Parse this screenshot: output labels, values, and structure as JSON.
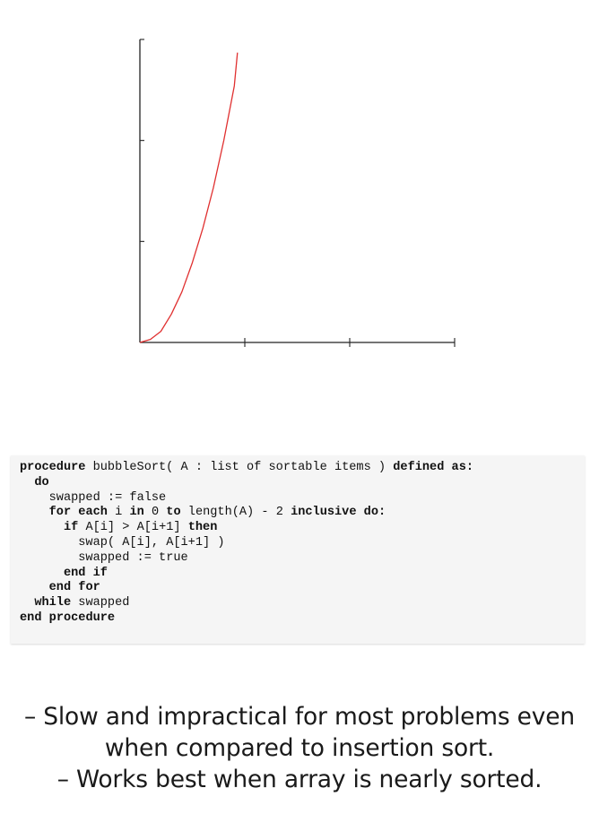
{
  "chart_data": {
    "type": "line",
    "title": "",
    "xlabel": "",
    "ylabel": "",
    "xlim": [
      0,
      3
    ],
    "ylim": [
      0,
      3
    ],
    "grid": false,
    "xticks": 3,
    "yticks": 3,
    "series": [
      {
        "color": "#e03030",
        "function": "quadratic",
        "x": [
          0,
          0.1,
          0.2,
          0.3,
          0.4,
          0.5,
          0.6,
          0.7,
          0.8,
          0.9,
          0.93
        ],
        "y": [
          0,
          0.03,
          0.11,
          0.28,
          0.5,
          0.79,
          1.13,
          1.53,
          2.0,
          2.54,
          2.87
        ]
      }
    ]
  },
  "code": {
    "lines": [
      {
        "text": "procedure bubbleSort( A : list of sortable items ) defined as:"
      },
      {
        "text": "  do"
      },
      {
        "text": "    swapped := false"
      },
      {
        "text": "    for each i in 0 to length(A) - 2 inclusive do:"
      },
      {
        "text": "      if A[i] > A[i+1] then"
      },
      {
        "text": "        swap( A[i], A[i+1] )"
      },
      {
        "text": "        swapped := true"
      },
      {
        "text": "      end if"
      },
      {
        "text": "    end for"
      },
      {
        "text": "  while swapped"
      },
      {
        "text": "end procedure"
      }
    ]
  },
  "notes": {
    "line1": "– Slow and impractical for most problems even",
    "line2": "when compared to insertion sort.",
    "line3": "– Works best when array is nearly sorted."
  }
}
